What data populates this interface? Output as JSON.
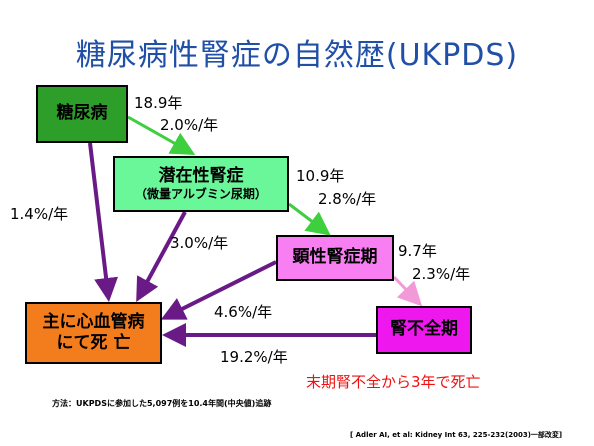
{
  "title": "糖尿病性腎症の自然歴(UKPDS)",
  "boxes": {
    "diabetes": "糖尿病",
    "latent_main": "潜在性腎症",
    "latent_sub": "（微量アルブミン尿期）",
    "overt": "顕性腎症期",
    "renal_failure": "腎不全期",
    "death_line1": "主に心血管病",
    "death_line2": "にて死  亡"
  },
  "rates": {
    "dm_to_latent_years": "18.9年",
    "dm_to_latent_rate": "2.0%/年",
    "latent_to_overt_years": "10.9年",
    "latent_to_overt_rate": "2.8%/年",
    "overt_to_renal_years": "9.7年",
    "overt_to_renal_rate": "2.3%/年",
    "dm_to_death": "1.4%/年",
    "latent_to_death": "3.0%/年",
    "overt_to_death": "4.6%/年",
    "renal_to_death": "19.2%/年"
  },
  "note_red": "末期腎不全から3年で死亡",
  "method": "方法：UKPDSに参加した5,097例を10.4年間(中央値)追跡",
  "citation": "[ Adler AI, et al: Kidney Int 63, 225-232(2003)一部改変]",
  "colors": {
    "title": "#1f4fa6",
    "diabetes": "#2e9e2a",
    "latent": "#6af79a",
    "overt": "#f77ff2",
    "renal_failure": "#ee18ee",
    "death": "#f37c1d",
    "arrow_green": "#3ecf3e",
    "arrow_purple": "#6a1a86",
    "arrow_pink": "#f29ad8",
    "note_red": "#ee1111"
  }
}
